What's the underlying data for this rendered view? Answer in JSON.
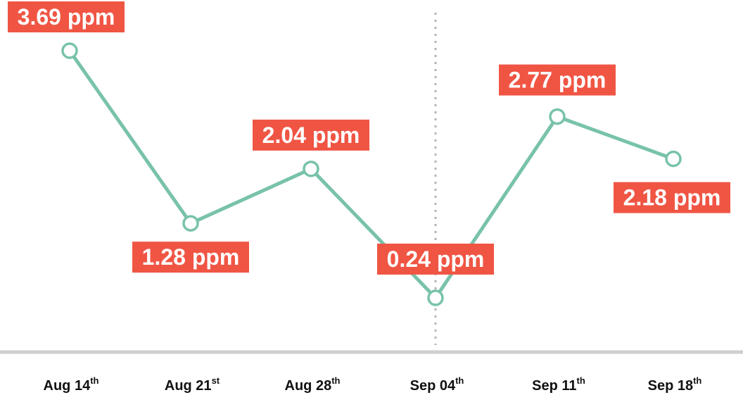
{
  "chart_data": {
    "type": "line",
    "categories": [
      "Aug 14th",
      "Aug 21st",
      "Aug 28th",
      "Sep 04th",
      "Sep 11th",
      "Sep 18th"
    ],
    "series": [
      {
        "name": null,
        "color": "#78c2ab",
        "values": [
          3.69,
          1.28,
          2.04,
          0.24,
          2.77,
          2.18
        ],
        "value_labels": [
          "3.69 ppm",
          "1.28 ppm",
          "2.04 ppm",
          "0.24 ppm",
          "2.77 ppm",
          "2.18 ppm"
        ]
      }
    ],
    "label_color": "#f05544"
  }
}
